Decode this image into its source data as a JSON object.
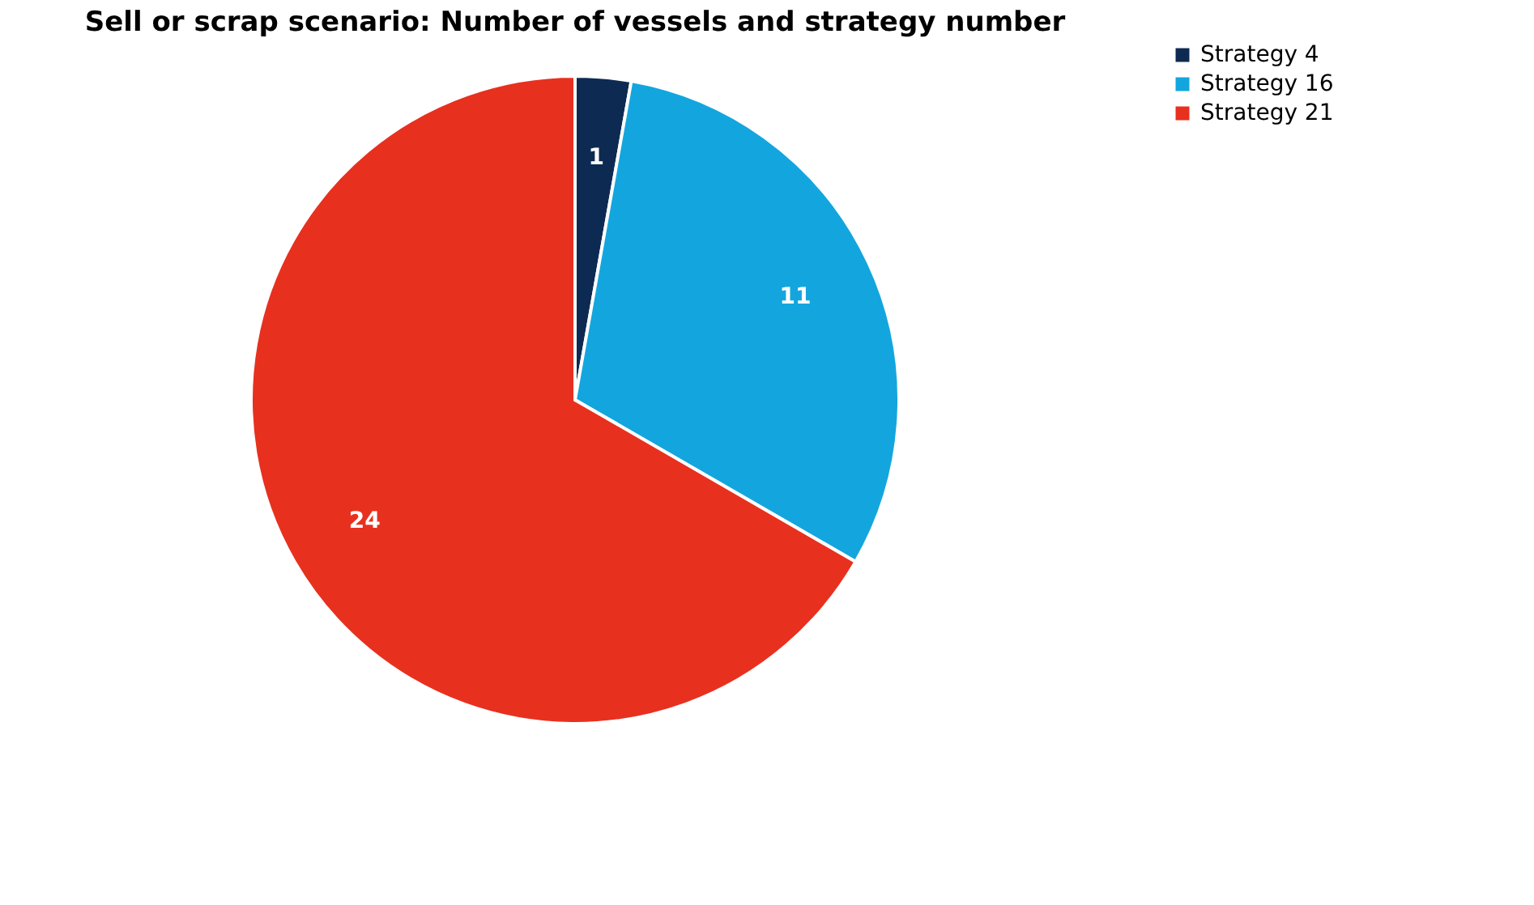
{
  "chart_data": {
    "type": "pie",
    "title": "Sell or scrap scenario: Number of vessels and strategy number",
    "categories": [
      "Strategy 4",
      "Strategy 16",
      "Strategy 21"
    ],
    "values": [
      1,
      11,
      24
    ],
    "colors": [
      "#0d2b52",
      "#13a6de",
      "#e8301f"
    ],
    "data_labels": true,
    "legend": "right"
  }
}
